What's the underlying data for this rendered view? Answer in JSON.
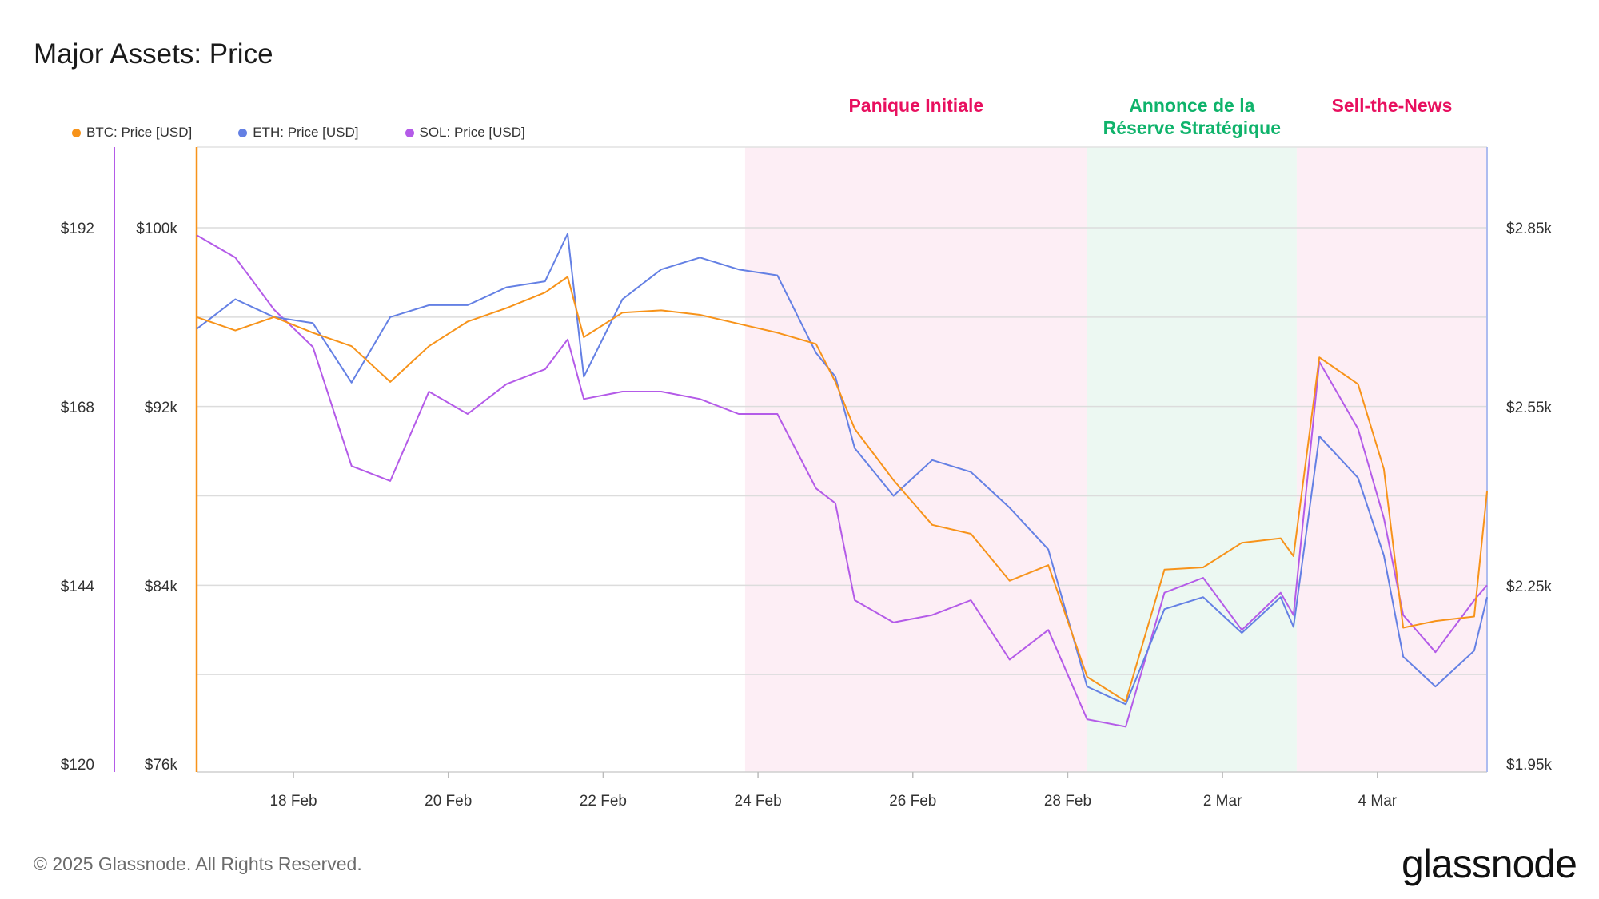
{
  "title": "Major Assets: Price",
  "footer": "© 2025 Glassnode. All Rights Reserved.",
  "brand": "glassnode",
  "colors": {
    "btc": "#f7931a",
    "eth": "#6480e4",
    "sol": "#b45be8",
    "panic": "#fdeef5",
    "reserve": "#ecf8f2",
    "panic_text": "#e8105f",
    "reserve_text": "#0fb36b"
  },
  "chart_data": {
    "type": "line",
    "title": "Major Assets: Price",
    "x_start": "2025-02-16 18:00",
    "x_end": "2025-03-05 10:00",
    "x_ticks": [
      "18 Feb",
      "20 Feb",
      "22 Feb",
      "24 Feb",
      "26 Feb",
      "28 Feb",
      "2 Mar",
      "4 Mar"
    ],
    "axes": {
      "sol": {
        "side": "left-outer",
        "ticks": [
          "$192",
          "$168",
          "$144",
          "$120"
        ],
        "range": [
          120,
          204
        ],
        "unit": "USD"
      },
      "btc": {
        "side": "left-inner",
        "ticks": [
          "$100k",
          "$92k",
          "$84k",
          "$76k"
        ],
        "range": [
          76000,
          104000
        ],
        "unit": "USD"
      },
      "eth": {
        "side": "right",
        "ticks": [
          "$2.85k",
          "$2.55k",
          "$2.25k",
          "$1.95k"
        ],
        "range": [
          1950,
          2850
        ],
        "unit": "USD"
      }
    },
    "grid": true,
    "legend": "top-left",
    "phases": [
      {
        "label": "Panique Initiale",
        "start": "2025-02-23 20:00",
        "end": "2025-02-28 06:00",
        "color": "panic"
      },
      {
        "label_lines": [
          "Annonce de la",
          "Réserve Stratégique"
        ],
        "start": "2025-02-28 06:00",
        "end": "2025-03-02 23:00",
        "color": "reserve"
      },
      {
        "label": "Sell-the-News",
        "start": "2025-03-02 23:00",
        "end": "2025-03-05 10:00",
        "color": "panic"
      }
    ],
    "series": [
      {
        "name": "BTC: Price [USD]",
        "key": "btc",
        "axis": "btc",
        "x": [
          "2025-02-16 18:00",
          "2025-02-17 06:00",
          "2025-02-17 18:00",
          "2025-02-18 06:00",
          "2025-02-18 18:00",
          "2025-02-19 06:00",
          "2025-02-19 18:00",
          "2025-02-20 06:00",
          "2025-02-20 18:00",
          "2025-02-21 06:00",
          "2025-02-21 13:00",
          "2025-02-21 18:00",
          "2025-02-22 06:00",
          "2025-02-22 18:00",
          "2025-02-23 06:00",
          "2025-02-23 18:00",
          "2025-02-24 06:00",
          "2025-02-24 18:00",
          "2025-02-25 00:00",
          "2025-02-25 06:00",
          "2025-02-25 18:00",
          "2025-02-26 06:00",
          "2025-02-26 18:00",
          "2025-02-27 06:00",
          "2025-02-27 18:00",
          "2025-02-28 06:00",
          "2025-02-28 18:00",
          "2025-03-01 06:00",
          "2025-03-01 18:00",
          "2025-03-02 06:00",
          "2025-03-02 18:00",
          "2025-03-02 22:00",
          "2025-03-03 06:00",
          "2025-03-03 18:00",
          "2025-03-04 02:00",
          "2025-03-04 08:00",
          "2025-03-04 18:00",
          "2025-03-05 06:00",
          "2025-03-05 10:00"
        ],
        "values": [
          96000,
          95400,
          96000,
          95300,
          94700,
          93100,
          94700,
          95800,
          96400,
          97100,
          97800,
          95100,
          96200,
          96300,
          96100,
          95700,
          95300,
          94800,
          93100,
          91000,
          88700,
          86700,
          86300,
          84200,
          84900,
          79900,
          78800,
          84700,
          84800,
          85900,
          86100,
          85300,
          94200,
          93000,
          89200,
          82100,
          82400,
          82600,
          88200
        ]
      },
      {
        "name": "ETH: Price [USD]",
        "key": "eth",
        "axis": "eth",
        "x": [
          "2025-02-16 18:00",
          "2025-02-17 06:00",
          "2025-02-17 18:00",
          "2025-02-18 06:00",
          "2025-02-18 18:00",
          "2025-02-19 06:00",
          "2025-02-19 18:00",
          "2025-02-20 06:00",
          "2025-02-20 18:00",
          "2025-02-21 06:00",
          "2025-02-21 13:00",
          "2025-02-21 18:00",
          "2025-02-22 06:00",
          "2025-02-22 18:00",
          "2025-02-23 06:00",
          "2025-02-23 18:00",
          "2025-02-24 06:00",
          "2025-02-24 18:00",
          "2025-02-25 00:00",
          "2025-02-25 06:00",
          "2025-02-25 18:00",
          "2025-02-26 06:00",
          "2025-02-26 18:00",
          "2025-02-27 06:00",
          "2025-02-27 18:00",
          "2025-02-28 06:00",
          "2025-02-28 18:00",
          "2025-03-01 06:00",
          "2025-03-01 18:00",
          "2025-03-02 06:00",
          "2025-03-02 18:00",
          "2025-03-02 22:00",
          "2025-03-03 06:00",
          "2025-03-03 18:00",
          "2025-03-04 02:00",
          "2025-03-04 08:00",
          "2025-03-04 18:00",
          "2025-03-05 06:00",
          "2025-03-05 10:00"
        ],
        "values": [
          2680,
          2730,
          2700,
          2690,
          2590,
          2700,
          2720,
          2720,
          2750,
          2760,
          2840,
          2600,
          2730,
          2780,
          2800,
          2780,
          2770,
          2640,
          2600,
          2480,
          2400,
          2460,
          2440,
          2380,
          2310,
          2080,
          2050,
          2210,
          2230,
          2170,
          2230,
          2180,
          2500,
          2430,
          2300,
          2130,
          2080,
          2140,
          2230
        ]
      },
      {
        "name": "SOL: Price [USD]",
        "key": "sol",
        "axis": "sol",
        "x": [
          "2025-02-16 18:00",
          "2025-02-17 06:00",
          "2025-02-17 18:00",
          "2025-02-18 06:00",
          "2025-02-18 18:00",
          "2025-02-19 06:00",
          "2025-02-19 18:00",
          "2025-02-20 06:00",
          "2025-02-20 18:00",
          "2025-02-21 06:00",
          "2025-02-21 13:00",
          "2025-02-21 18:00",
          "2025-02-22 06:00",
          "2025-02-22 18:00",
          "2025-02-23 06:00",
          "2025-02-23 18:00",
          "2025-02-24 06:00",
          "2025-02-24 18:00",
          "2025-02-25 00:00",
          "2025-02-25 06:00",
          "2025-02-25 18:00",
          "2025-02-26 06:00",
          "2025-02-26 18:00",
          "2025-02-27 06:00",
          "2025-02-27 18:00",
          "2025-02-28 06:00",
          "2025-02-28 18:00",
          "2025-03-01 06:00",
          "2025-03-01 18:00",
          "2025-03-02 06:00",
          "2025-03-02 18:00",
          "2025-03-02 22:00",
          "2025-03-03 06:00",
          "2025-03-03 18:00",
          "2025-03-04 02:00",
          "2025-03-04 08:00",
          "2025-03-04 18:00",
          "2025-03-05 06:00",
          "2025-03-05 10:00"
        ],
        "values": [
          191,
          188,
          181,
          176,
          160,
          158,
          170,
          167,
          171,
          173,
          177,
          169,
          170,
          170,
          169,
          167,
          167,
          157,
          155,
          142,
          139,
          140,
          142,
          134,
          138,
          126,
          125,
          143,
          145,
          138,
          143,
          140,
          174,
          165,
          153,
          140,
          135,
          142,
          144
        ]
      }
    ]
  }
}
